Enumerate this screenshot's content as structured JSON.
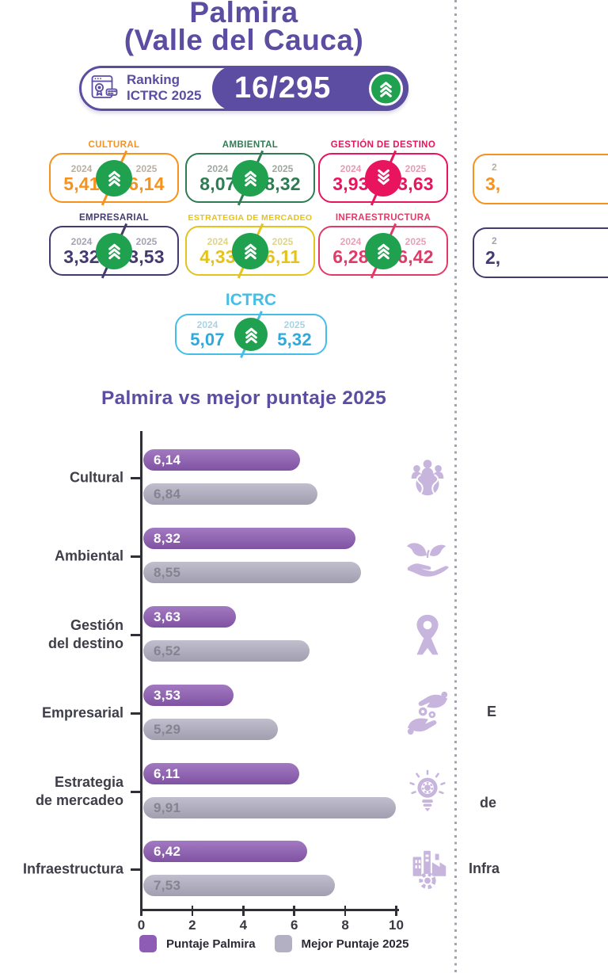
{
  "page": {
    "title_line1": "Palmira",
    "title_line2": "(Valle del Cauca)"
  },
  "ranking": {
    "label_line1": "Ranking",
    "label_line2": "ICTRC 2025",
    "value": "16/295",
    "trend": "up",
    "icon": "certificate-window-icon",
    "badge_color": "#5C4DA3"
  },
  "trend_colors": {
    "up": "#1FA14F",
    "down": "#E8145E"
  },
  "cards": [
    {
      "title": "CULTURAL",
      "color": "#F6921E",
      "year_color": "#B9AFA2",
      "year_left": "2024",
      "year_right": "2025",
      "value_left": "5,41",
      "value_right": "6,14",
      "trend": "up"
    },
    {
      "title": "AMBIENTAL",
      "color": "#2E7D52",
      "year_color": "#9FA8A0",
      "year_left": "2024",
      "year_right": "2025",
      "value_left": "8,07",
      "value_right": "8,32",
      "trend": "up"
    },
    {
      "title": "GESTIÓN DE DESTINO",
      "color": "#E8145E",
      "year_color": "#E59CB4",
      "year_left": "2024",
      "year_right": "2025",
      "value_left": "3,93",
      "value_right": "3,63",
      "trend": "down"
    },
    {
      "title": "EMPRESARIAL",
      "color": "#453A70",
      "year_color": "#A5A2B2",
      "year_left": "2024",
      "year_right": "2025",
      "value_left": "3,32",
      "value_right": "3,53",
      "trend": "up"
    },
    {
      "title": "ESTRATEGIA DE MERCADEO",
      "color": "#E3C31D",
      "year_color": "#DDD489",
      "year_left": "2024",
      "year_right": "2025",
      "value_left": "4,33",
      "value_right": "6,11",
      "trend": "up"
    },
    {
      "title": "INFRAESTRUCTURA",
      "color": "#E23A68",
      "year_color": "#E8A0B6",
      "year_left": "2024",
      "year_right": "2025",
      "value_left": "6,28",
      "value_right": "6,42",
      "trend": "up"
    }
  ],
  "ictrc": {
    "title": "ICTRC",
    "color": "#45BEE6",
    "value_color": "#2FA9DC",
    "year_color": "#A9D3E4",
    "year_left": "2024",
    "year_right": "2025",
    "value_left": "5,07",
    "value_right": "5,32",
    "trend": "up"
  },
  "chart": {
    "title": "Palmira vs mejor puntaje 2025"
  },
  "chart_data": {
    "type": "bar",
    "orientation": "horizontal",
    "title": "Palmira vs mejor puntaje 2025",
    "categories": [
      "Cultural",
      "Ambiental",
      "Gestión\ndel destino",
      "Empresarial",
      "Estrategia\nde mercadeo",
      "Infraestructura"
    ],
    "series": [
      {
        "name": "Puntaje Palmira",
        "color": "#8E5CB4",
        "values": [
          6.14,
          8.32,
          3.63,
          3.53,
          6.11,
          6.42
        ],
        "labels": [
          "6,14",
          "8,32",
          "3,63",
          "3,53",
          "6,11",
          "6,42"
        ]
      },
      {
        "name": "Mejor Puntaje 2025",
        "color": "#B3B0C3",
        "values": [
          6.84,
          8.55,
          6.52,
          5.29,
          9.91,
          7.53
        ],
        "labels": [
          "6,84",
          "8,55",
          "6,52",
          "5,29",
          "9,91",
          "7,53"
        ]
      }
    ],
    "xlim": [
      0,
      10
    ],
    "x_ticks": [
      0,
      2,
      4,
      6,
      8,
      10
    ],
    "grid": false,
    "legend_position": "bottom",
    "icons": [
      "community-icon",
      "eco-hand-icon",
      "location-pin-icon",
      "hands-coins-icon",
      "idea-gear-icon",
      "factory-gear-icon"
    ],
    "icon_color": "#C7B5DE"
  },
  "partial_right": {
    "cards": [
      {
        "year": "2",
        "value": "3,",
        "color": "#F6921E",
        "year_color": "#B9AFA2"
      },
      {
        "year": "2",
        "value": "2,",
        "color": "#453A70",
        "year_color": "#A5A2B2"
      }
    ],
    "fragments": [
      "E",
      "de",
      "Infra"
    ]
  }
}
